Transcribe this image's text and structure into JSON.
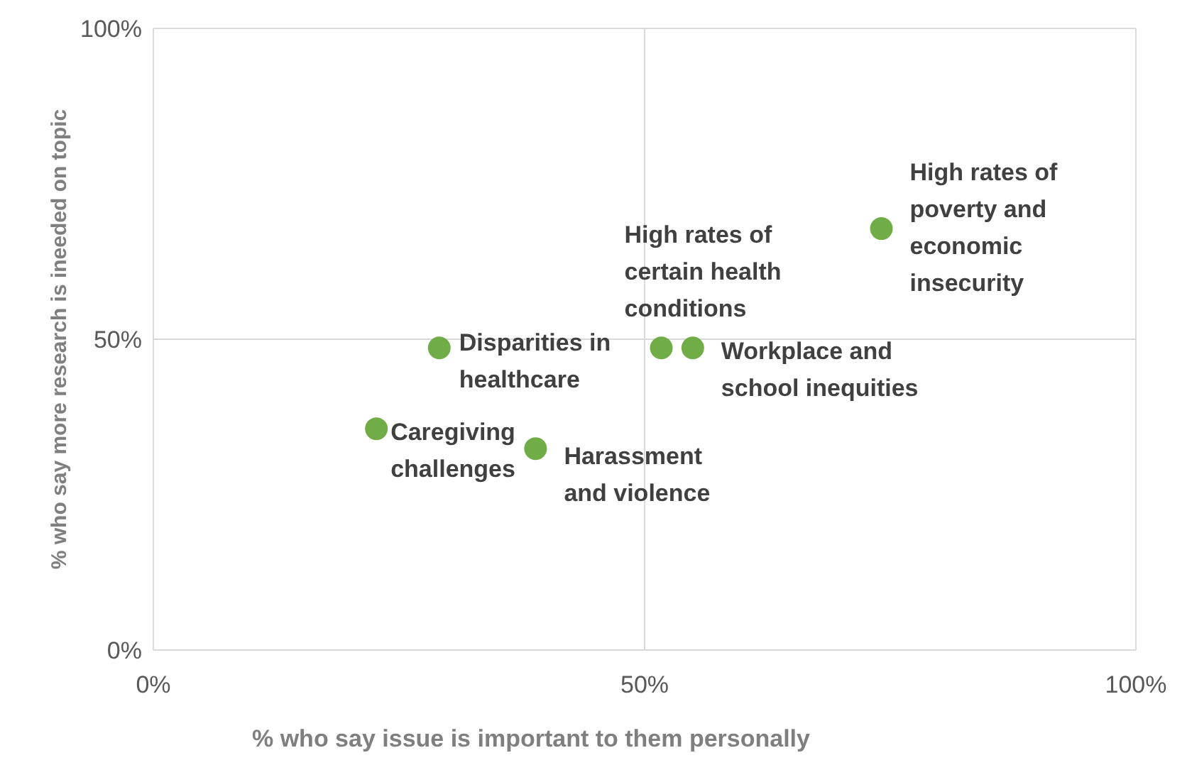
{
  "chart_data": {
    "type": "scatter",
    "xlabel": "% who say issue is important to them personally",
    "ylabel": "% who say more research is ineeded on topic",
    "series": [
      {
        "color": "#70ad47",
        "x": [
          22.7,
          29.1,
          38.9,
          51.7,
          54.9,
          74.1
        ],
        "values": [
          35.6,
          48.6,
          32.4,
          48.6,
          48.6,
          67.8
        ]
      }
    ],
    "xlim": [
      0,
      100
    ],
    "ylim": [
      0,
      100
    ],
    "xticks": [
      {
        "value": 0,
        "label": "0%"
      },
      {
        "value": 50,
        "label": "50%"
      },
      {
        "value": 100,
        "label": "100%"
      }
    ],
    "yticks": [
      {
        "value": 0,
        "label": "0%"
      },
      {
        "value": 50,
        "label": "50%"
      },
      {
        "value": 100,
        "label": "100%"
      }
    ],
    "grid": true,
    "marker": "circle",
    "legend": false,
    "annotations": [
      {
        "text": "Caregiving\nchallenges",
        "x": 22.7,
        "y": 35.6
      },
      {
        "text": "Disparities in\nhealthcare",
        "x": 29.1,
        "y": 48.6
      },
      {
        "text": "Harassment\nand violence",
        "x": 38.9,
        "y": 32.4
      },
      {
        "text": "High rates of\ncertain health\nconditions",
        "x": 51.7,
        "y": 48.6
      },
      {
        "text": "Workplace and\nschool inequities",
        "x": 54.9,
        "y": 48.6
      },
      {
        "text": "High rates of\npoverty and\neconomic\ninsecurity",
        "x": 74.1,
        "y": 67.8
      }
    ]
  }
}
